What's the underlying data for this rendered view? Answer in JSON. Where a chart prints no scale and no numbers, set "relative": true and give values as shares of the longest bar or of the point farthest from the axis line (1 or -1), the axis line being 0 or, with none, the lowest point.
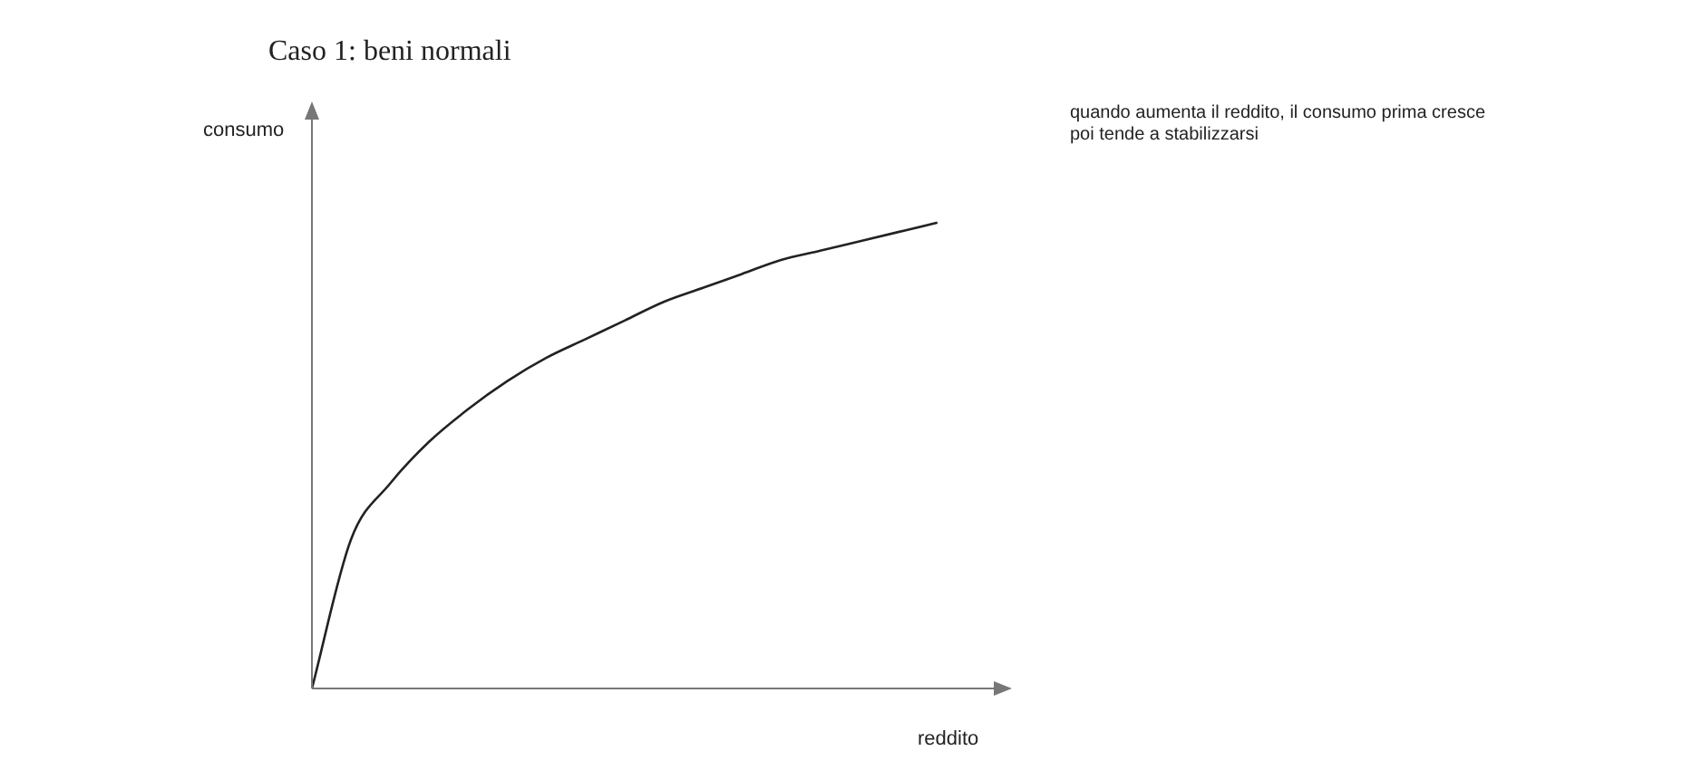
{
  "chart_data": {
    "type": "line",
    "title": "Caso 1: beni normali",
    "xlabel": "reddito",
    "ylabel": "consumo",
    "relative": true,
    "annotations": [
      "quando aumenta il reddito, il consumo prima cresce poi tende a stabilizzarsi"
    ],
    "categories": [
      null,
      null,
      null,
      null,
      null,
      null,
      null,
      null,
      null,
      null,
      null,
      null,
      null,
      null,
      null,
      null,
      null,
      null,
      null
    ],
    "series": [
      {
        "color": "#222222",
        "values": [
          0,
          0.32,
          0.44,
          0.53,
          0.6,
          0.66,
          0.71,
          0.75,
          0.79,
          0.83,
          0.86,
          0.89,
          0.92,
          0.94,
          0.96,
          0.98,
          1,
          null,
          null
        ]
      }
    ],
    "marker": "none",
    "line_style": "solid",
    "legend": false
  }
}
